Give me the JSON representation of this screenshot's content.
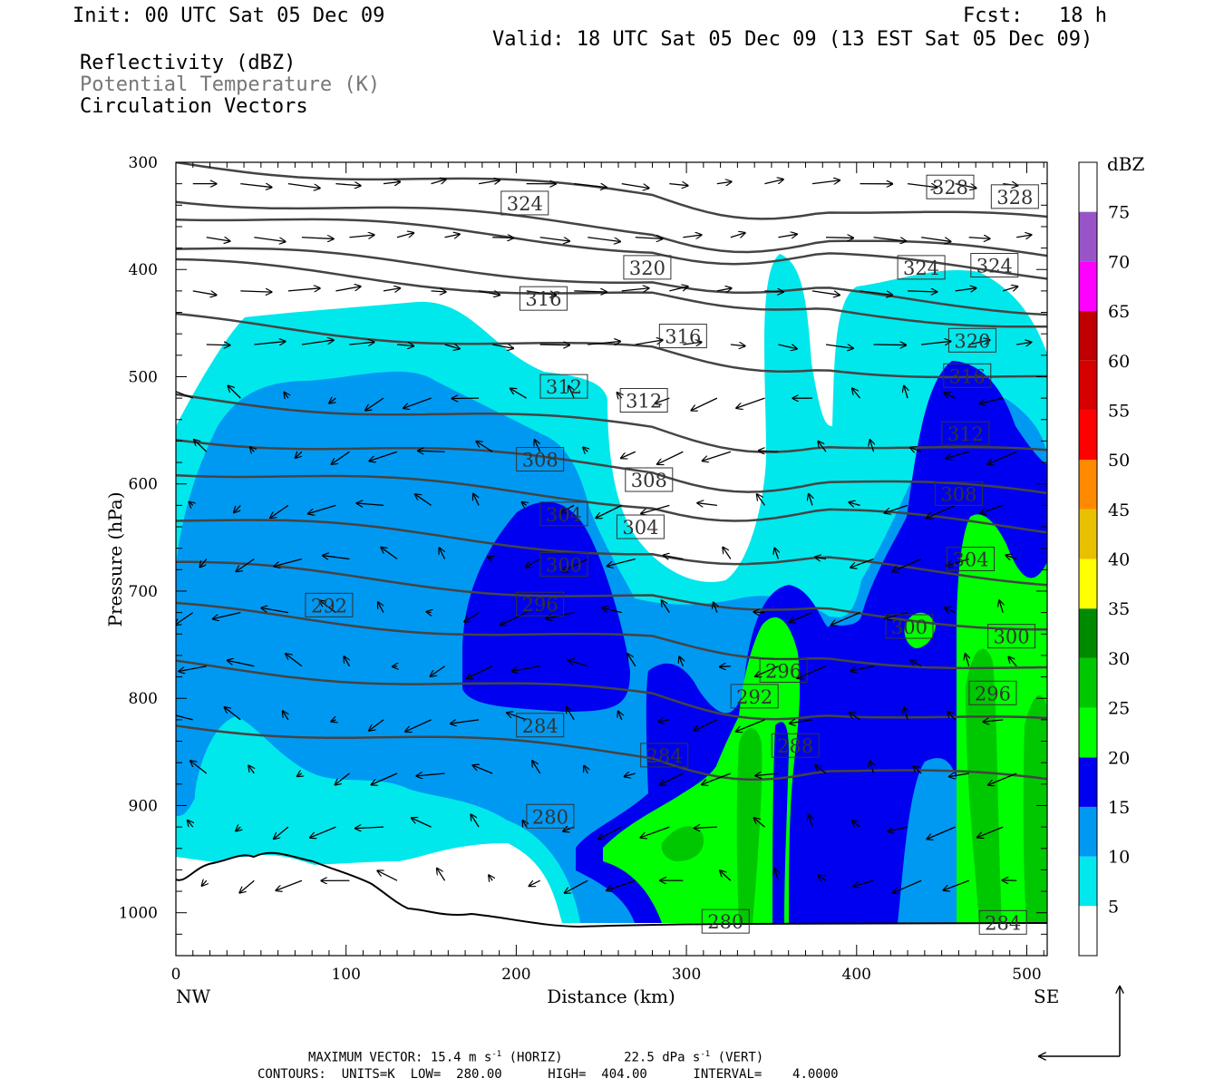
{
  "header": {
    "init": "Init: 00 UTC Sat 05 Dec 09",
    "fcst": "Fcst:   18 h",
    "valid": "Valid: 18 UTC Sat 05 Dec 09 (13 EST Sat 05 Dec 09)",
    "fields": [
      "Reflectivity (dBZ)",
      "Potential Temperature (K)",
      "Circulation Vectors"
    ]
  },
  "footer": {
    "vec_label": "MAXIMUM VECTOR:",
    "vec_h": "15.4",
    "vec_h_unit": "m s",
    "vec_h_tag": "(HORIZ)",
    "vec_v": "22.5",
    "vec_v_unit": "dPa s",
    "vec_v_tag": "(VERT)",
    "exp": "-1",
    "contours": "CONTOURS:  UNITS=K  LOW=  280.00      HIGH=  404.00      INTERVAL=    4.0000"
  },
  "chart_data": {
    "type": "cross-section",
    "xlabel": "Distance (km)",
    "ylabel": "Pressure (hPa)",
    "xlim": [
      0,
      512
    ],
    "ylim": [
      1040,
      300
    ],
    "xticks": [
      0,
      100,
      200,
      300,
      400,
      500
    ],
    "yticks": [
      300,
      400,
      500,
      600,
      700,
      800,
      900,
      1000
    ],
    "x_endpoints": {
      "left": "NW",
      "right": "SE"
    },
    "colorbar": {
      "title": "dBZ",
      "levels": [
        5,
        10,
        15,
        20,
        25,
        30,
        35,
        40,
        45,
        50,
        55,
        60,
        65,
        70,
        75
      ],
      "colors": [
        "#ffffff",
        "#00e8ec",
        "#0099f2",
        "#0000f0",
        "#00ff00",
        "#00c800",
        "#008a00",
        "#ffff00",
        "#e8c000",
        "#ff8a00",
        "#ff0000",
        "#d60000",
        "#c00000",
        "#ff00ff",
        "#9955c8"
      ]
    },
    "theta_contours": {
      "units": "K",
      "labels": [
        {
          "v": "324",
          "x": 205,
          "p": 338
        },
        {
          "v": "328",
          "x": 455,
          "p": 323
        },
        {
          "v": "328",
          "x": 493,
          "p": 332
        },
        {
          "v": "320",
          "x": 277,
          "p": 398
        },
        {
          "v": "324",
          "x": 438,
          "p": 398
        },
        {
          "v": "324",
          "x": 481,
          "p": 396
        },
        {
          "v": "316",
          "x": 216,
          "p": 427
        },
        {
          "v": "316",
          "x": 298,
          "p": 462
        },
        {
          "v": "320",
          "x": 468,
          "p": 466
        },
        {
          "v": "312",
          "x": 228,
          "p": 509
        },
        {
          "v": "312",
          "x": 275,
          "p": 522
        },
        {
          "v": "316",
          "x": 465,
          "p": 499
        },
        {
          "v": "308",
          "x": 214,
          "p": 577
        },
        {
          "v": "308",
          "x": 278,
          "p": 596
        },
        {
          "v": "312",
          "x": 464,
          "p": 553
        },
        {
          "v": "304",
          "x": 228,
          "p": 628
        },
        {
          "v": "304",
          "x": 273,
          "p": 640
        },
        {
          "v": "308",
          "x": 460,
          "p": 609
        },
        {
          "v": "300",
          "x": 228,
          "p": 675
        },
        {
          "v": "304",
          "x": 467,
          "p": 670
        },
        {
          "v": "292",
          "x": 90,
          "p": 713
        },
        {
          "v": "296",
          "x": 214,
          "p": 712
        },
        {
          "v": "300",
          "x": 431,
          "p": 733
        },
        {
          "v": "300",
          "x": 491,
          "p": 742
        },
        {
          "v": "296",
          "x": 357,
          "p": 774
        },
        {
          "v": "296",
          "x": 480,
          "p": 795
        },
        {
          "v": "292",
          "x": 340,
          "p": 798
        },
        {
          "v": "284",
          "x": 214,
          "p": 825
        },
        {
          "v": "284",
          "x": 287,
          "p": 853
        },
        {
          "v": "288",
          "x": 364,
          "p": 844
        },
        {
          "v": "280",
          "x": 220,
          "p": 910
        },
        {
          "v": "280",
          "x": 323,
          "p": 1008
        },
        {
          "v": "284",
          "x": 486,
          "p": 1009
        }
      ]
    },
    "reflectivity_regions_dBZ": [
      5,
      10,
      15,
      20,
      25
    ],
    "max_vector": {
      "horizontal_m_s": 15.4,
      "vertical_dPa_s": 22.5
    }
  }
}
